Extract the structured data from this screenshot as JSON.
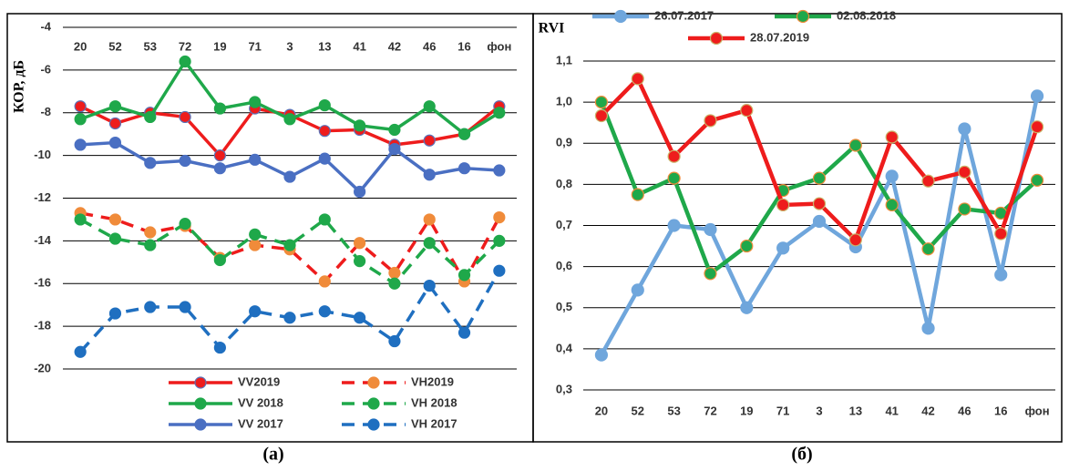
{
  "chart_data": [
    {
      "type": "line",
      "ylabel": "КОР, дБ",
      "label": "(а)",
      "xaxis_position": "top",
      "grid": true,
      "legend": "bottom",
      "categories": [
        "20",
        "52",
        "53",
        "72",
        "19",
        "71",
        "3",
        "13",
        "41",
        "42",
        "46",
        "16",
        "фон"
      ],
      "ylim": [
        -20,
        -4
      ],
      "yticks": [
        -20,
        -18,
        -16,
        -14,
        -12,
        -10,
        -8,
        -6,
        -4
      ],
      "series": [
        {
          "name": "VV2019",
          "color": "#ee1c1c",
          "marker_color": "#ee1c1c",
          "marker_edge": "#5b73b8",
          "dash": false,
          "values": [
            -7.7,
            -8.5,
            -8.0,
            -8.2,
            -10.0,
            -7.8,
            -8.1,
            -8.85,
            -8.8,
            -9.5,
            -9.3,
            -9.0,
            -7.7
          ]
        },
        {
          "name": "VH2019",
          "color": "#ee1c1c",
          "marker_color": "#f08b3a",
          "marker_edge": "#f08b3a",
          "dash": true,
          "values": [
            -12.7,
            -13.0,
            -13.6,
            -13.3,
            -14.8,
            -14.2,
            -14.4,
            -15.9,
            -14.1,
            -15.5,
            -13.0,
            -15.9,
            -12.9
          ]
        },
        {
          "name": "VV 2018",
          "color": "#1fa84a",
          "marker_color": "#1fa84a",
          "marker_edge": "#1fa84a",
          "dash": false,
          "values": [
            -8.3,
            -7.7,
            -8.2,
            -5.6,
            -7.8,
            -7.5,
            -8.3,
            -7.65,
            -8.6,
            -8.8,
            -7.7,
            -9.0,
            -8.0
          ]
        },
        {
          "name": "VH 2018",
          "color": "#1fa84a",
          "marker_color": "#1fa84a",
          "marker_edge": "#1fa84a",
          "dash": true,
          "values": [
            -13.0,
            -13.9,
            -14.2,
            -13.2,
            -14.9,
            -13.7,
            -14.2,
            -13.0,
            -14.95,
            -16.0,
            -14.1,
            -15.6,
            -14.0
          ]
        },
        {
          "name": "VV 2017",
          "color": "#4a6fc2",
          "marker_color": "#4a6fc2",
          "marker_edge": "#4a6fc2",
          "dash": false,
          "values": [
            -9.5,
            -9.4,
            -10.35,
            -10.25,
            -10.6,
            -10.2,
            -11.0,
            -10.15,
            -11.7,
            -9.7,
            -10.9,
            -10.6,
            -10.7
          ]
        },
        {
          "name": "VH 2017",
          "color": "#1f6fc0",
          "marker_color": "#1f6fc0",
          "marker_edge": "#1f6fc0",
          "dash": true,
          "values": [
            -19.2,
            -17.4,
            -17.1,
            -17.1,
            -19.0,
            -17.3,
            -17.6,
            -17.3,
            -17.6,
            -18.7,
            -16.1,
            -18.3,
            -15.4
          ]
        }
      ]
    },
    {
      "type": "line",
      "ylabel": "RVI",
      "label": "(б)",
      "xaxis_position": "bottom",
      "grid": true,
      "legend": "top",
      "categories": [
        "20",
        "52",
        "53",
        "72",
        "19",
        "71",
        "3",
        "13",
        "41",
        "42",
        "46",
        "16",
        "фон"
      ],
      "ylim": [
        0.3,
        1.1
      ],
      "yticks": [
        {
          "value": 0.3,
          "label": "0,3"
        },
        {
          "value": 0.4,
          "label": "0,4"
        },
        {
          "value": 0.5,
          "label": "0,5"
        },
        {
          "value": 0.6,
          "label": "0,6"
        },
        {
          "value": 0.7,
          "label": "0,7"
        },
        {
          "value": 0.8,
          "label": "0,8"
        },
        {
          "value": 0.9,
          "label": "0,9"
        },
        {
          "value": 1,
          "label": "1,0"
        },
        {
          "value": 1.1,
          "label": "1,1"
        }
      ],
      "series": [
        {
          "name": "26.07.2017",
          "color": "#6fa6dc",
          "marker_color": "#6fa6dc",
          "marker_edge": "#6fa6dc",
          "dash": false,
          "values": [
            0.385,
            0.543,
            0.7,
            0.69,
            0.5,
            0.645,
            0.71,
            0.648,
            0.82,
            0.45,
            0.935,
            0.58,
            1.015
          ]
        },
        {
          "name": "02.08.2018",
          "color": "#1fa84a",
          "marker_color": "#1fa84a",
          "marker_edge": "#f08b3a",
          "dash": false,
          "values": [
            1.0,
            0.775,
            0.815,
            0.583,
            0.65,
            0.785,
            0.815,
            0.895,
            0.75,
            0.643,
            0.74,
            0.73,
            0.81
          ]
        },
        {
          "name": "28.07.2019",
          "color": "#ee1c1c",
          "marker_color": "#ee1c1c",
          "marker_edge": "#c9b36a",
          "dash": false,
          "values": [
            0.967,
            1.057,
            0.868,
            0.955,
            0.98,
            0.75,
            0.753,
            0.665,
            0.915,
            0.808,
            0.83,
            0.68,
            0.94
          ]
        }
      ]
    }
  ]
}
